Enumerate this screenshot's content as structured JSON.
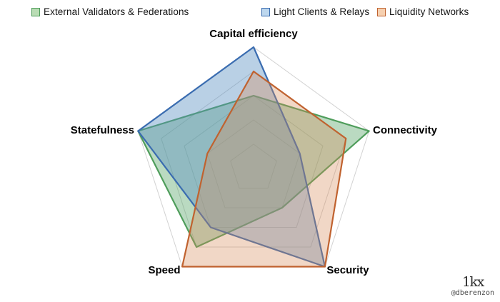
{
  "chart_data": {
    "type": "radar",
    "title": "",
    "categories": [
      "Capital efficiency",
      "Connectivity",
      "Security",
      "Speed",
      "Statefulness"
    ],
    "axis_range": [
      0,
      5
    ],
    "ring_levels": [
      1,
      2,
      3,
      4,
      5
    ],
    "grid_on": true,
    "grid_color": "#d2d2d2",
    "legend_position": "top",
    "series": [
      {
        "name": "External Validators & Federations",
        "values": [
          3,
          5,
          2,
          4,
          5
        ],
        "line_color": "#4f9d5b",
        "fill_color": "rgba(83, 163, 100, 0.40)",
        "swatch_fill": "#b9dcb4"
      },
      {
        "name": "Light Clients & Relays",
        "values": [
          5,
          2,
          5,
          3,
          5
        ],
        "line_color": "#3a6cb0",
        "fill_color": "rgba(89, 143, 192, 0.42)",
        "swatch_fill": "#bdd7ee"
      },
      {
        "name": "Liquidity Networks",
        "values": [
          4,
          4,
          5,
          5,
          2
        ],
        "line_color": "#c0622f",
        "fill_color": "rgba(214, 138, 88, 0.34)",
        "swatch_fill": "#f6d0b0"
      }
    ]
  },
  "footer": {
    "logo": "1kx",
    "handle": "@dberenzon"
  }
}
